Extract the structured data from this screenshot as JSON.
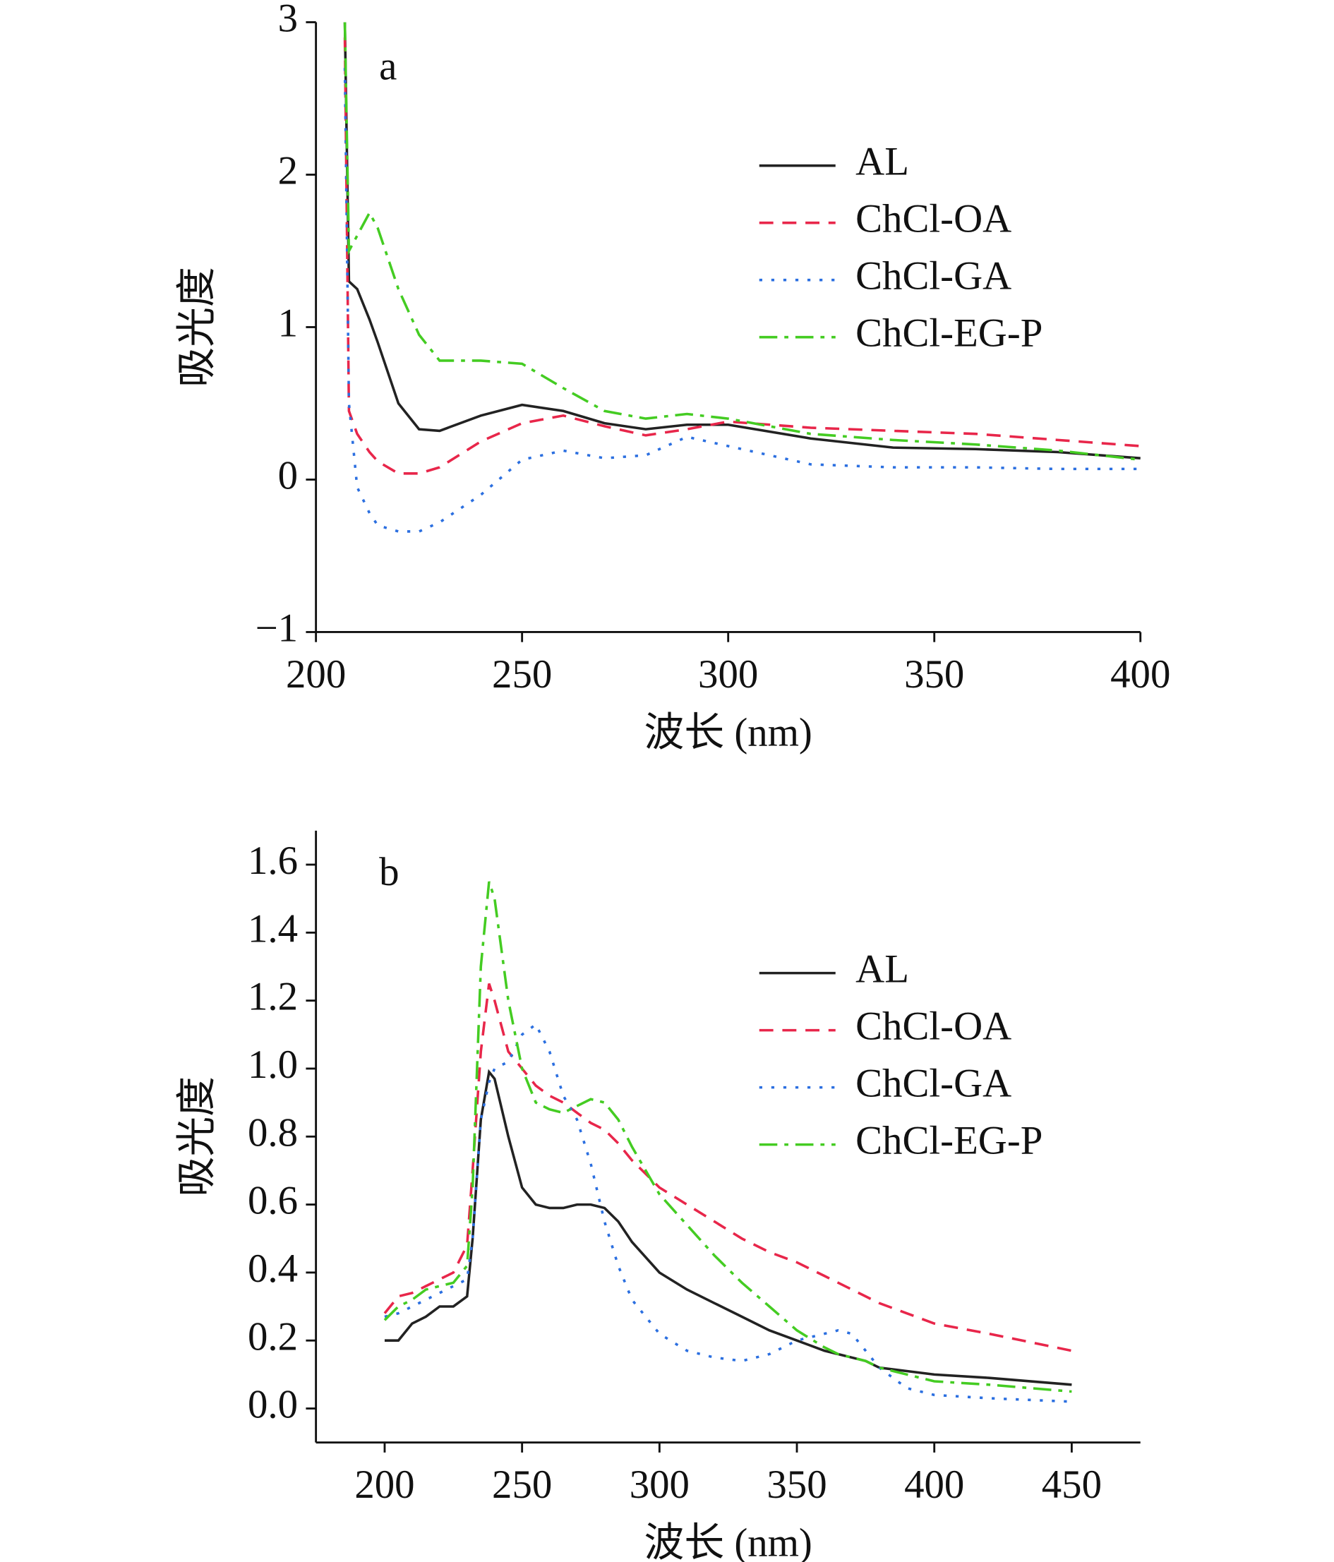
{
  "chart_data": [
    {
      "type": "line",
      "annotation": "a",
      "xlabel": "波长 (nm)",
      "ylabel": "吸光度",
      "xlim": [
        200,
        400
      ],
      "xticks": [
        200,
        250,
        300,
        350,
        400
      ],
      "ylim": [
        -1,
        3
      ],
      "yticks": [
        {
          "value": -1,
          "label": "−1"
        },
        0,
        1,
        2,
        3
      ],
      "x": [
        207,
        208,
        210,
        213,
        215,
        220,
        225,
        230,
        240,
        250,
        260,
        270,
        280,
        290,
        300,
        320,
        340,
        360,
        380,
        400
      ],
      "series": [
        {
          "name": "AL",
          "color": "#222222",
          "values": [
            3.0,
            1.3,
            1.25,
            1.05,
            0.9,
            0.5,
            0.33,
            0.32,
            0.42,
            0.49,
            0.45,
            0.37,
            0.33,
            0.36,
            0.36,
            0.27,
            0.21,
            0.2,
            0.18,
            0.14
          ]
        },
        {
          "name": "ChCl-OA",
          "color": "#e8264a",
          "values": [
            2.9,
            0.45,
            0.3,
            0.18,
            0.12,
            0.04,
            0.04,
            0.08,
            0.25,
            0.37,
            0.42,
            0.35,
            0.29,
            0.33,
            0.38,
            0.34,
            0.32,
            0.3,
            0.26,
            0.22
          ]
        },
        {
          "name": "ChCl-GA",
          "color": "#2b6fe0",
          "values": [
            2.7,
            0.5,
            -0.05,
            -0.22,
            -0.3,
            -0.34,
            -0.34,
            -0.28,
            -0.1,
            0.13,
            0.19,
            0.14,
            0.16,
            0.28,
            0.22,
            0.1,
            0.08,
            0.08,
            0.07,
            0.07
          ]
        },
        {
          "name": "ChCl-EG-P",
          "color": "#44cc22",
          "values": [
            3.0,
            1.5,
            1.6,
            1.75,
            1.65,
            1.25,
            0.95,
            0.78,
            0.78,
            0.76,
            0.6,
            0.45,
            0.4,
            0.43,
            0.4,
            0.3,
            0.26,
            0.23,
            0.19,
            0.13
          ]
        }
      ]
    },
    {
      "type": "line",
      "annotation": "b",
      "xlabel": "波长 (nm)",
      "ylabel": "吸光度",
      "xlim": [
        175,
        475
      ],
      "xticks": [
        200,
        250,
        300,
        350,
        400,
        450
      ],
      "ylim": [
        -0.1,
        1.7
      ],
      "yticks": [
        {
          "value": 0,
          "label": "0.0"
        },
        0.2,
        0.4,
        0.6,
        0.8,
        {
          "value": 1,
          "label": "1.0"
        },
        1.2,
        1.4,
        1.6
      ],
      "x": [
        200,
        205,
        210,
        215,
        220,
        225,
        230,
        232,
        235,
        238,
        240,
        245,
        250,
        255,
        260,
        265,
        270,
        275,
        280,
        285,
        290,
        300,
        310,
        320,
        330,
        340,
        350,
        360,
        365,
        370,
        375,
        380,
        390,
        400,
        420,
        450
      ],
      "series": [
        {
          "name": "AL",
          "color": "#222222",
          "values": [
            0.2,
            0.2,
            0.25,
            0.27,
            0.3,
            0.3,
            0.33,
            0.5,
            0.85,
            0.99,
            0.97,
            0.8,
            0.65,
            0.6,
            0.59,
            0.59,
            0.6,
            0.6,
            0.59,
            0.55,
            0.49,
            0.4,
            0.35,
            0.31,
            0.27,
            0.23,
            0.2,
            0.17,
            0.16,
            0.15,
            0.14,
            0.12,
            0.11,
            0.1,
            0.09,
            0.07
          ]
        },
        {
          "name": "ChCl-OA",
          "color": "#e8264a",
          "values": [
            0.28,
            0.33,
            0.34,
            0.36,
            0.38,
            0.4,
            0.48,
            0.7,
            1.05,
            1.25,
            1.2,
            1.05,
            1.0,
            0.95,
            0.92,
            0.9,
            0.87,
            0.84,
            0.82,
            0.78,
            0.73,
            0.65,
            0.6,
            0.55,
            0.5,
            0.46,
            0.43,
            0.39,
            0.37,
            0.35,
            0.33,
            0.31,
            0.28,
            0.25,
            0.22,
            0.17
          ]
        },
        {
          "name": "ChCl-GA",
          "color": "#2b6fe0",
          "values": [
            0.27,
            0.28,
            0.3,
            0.32,
            0.34,
            0.36,
            0.38,
            0.5,
            0.85,
            0.96,
            1.0,
            1.02,
            1.1,
            1.13,
            1.05,
            0.92,
            0.85,
            0.72,
            0.55,
            0.42,
            0.32,
            0.22,
            0.17,
            0.15,
            0.14,
            0.16,
            0.2,
            0.22,
            0.23,
            0.22,
            0.17,
            0.12,
            0.06,
            0.04,
            0.03,
            0.02
          ]
        },
        {
          "name": "ChCl-EG-P",
          "color": "#44cc22",
          "values": [
            0.26,
            0.3,
            0.32,
            0.35,
            0.36,
            0.37,
            0.42,
            0.65,
            1.3,
            1.55,
            1.5,
            1.2,
            1.0,
            0.9,
            0.88,
            0.87,
            0.89,
            0.91,
            0.9,
            0.85,
            0.77,
            0.63,
            0.54,
            0.45,
            0.37,
            0.3,
            0.23,
            0.18,
            0.16,
            0.15,
            0.14,
            0.12,
            0.1,
            0.08,
            0.07,
            0.05
          ]
        }
      ]
    }
  ]
}
